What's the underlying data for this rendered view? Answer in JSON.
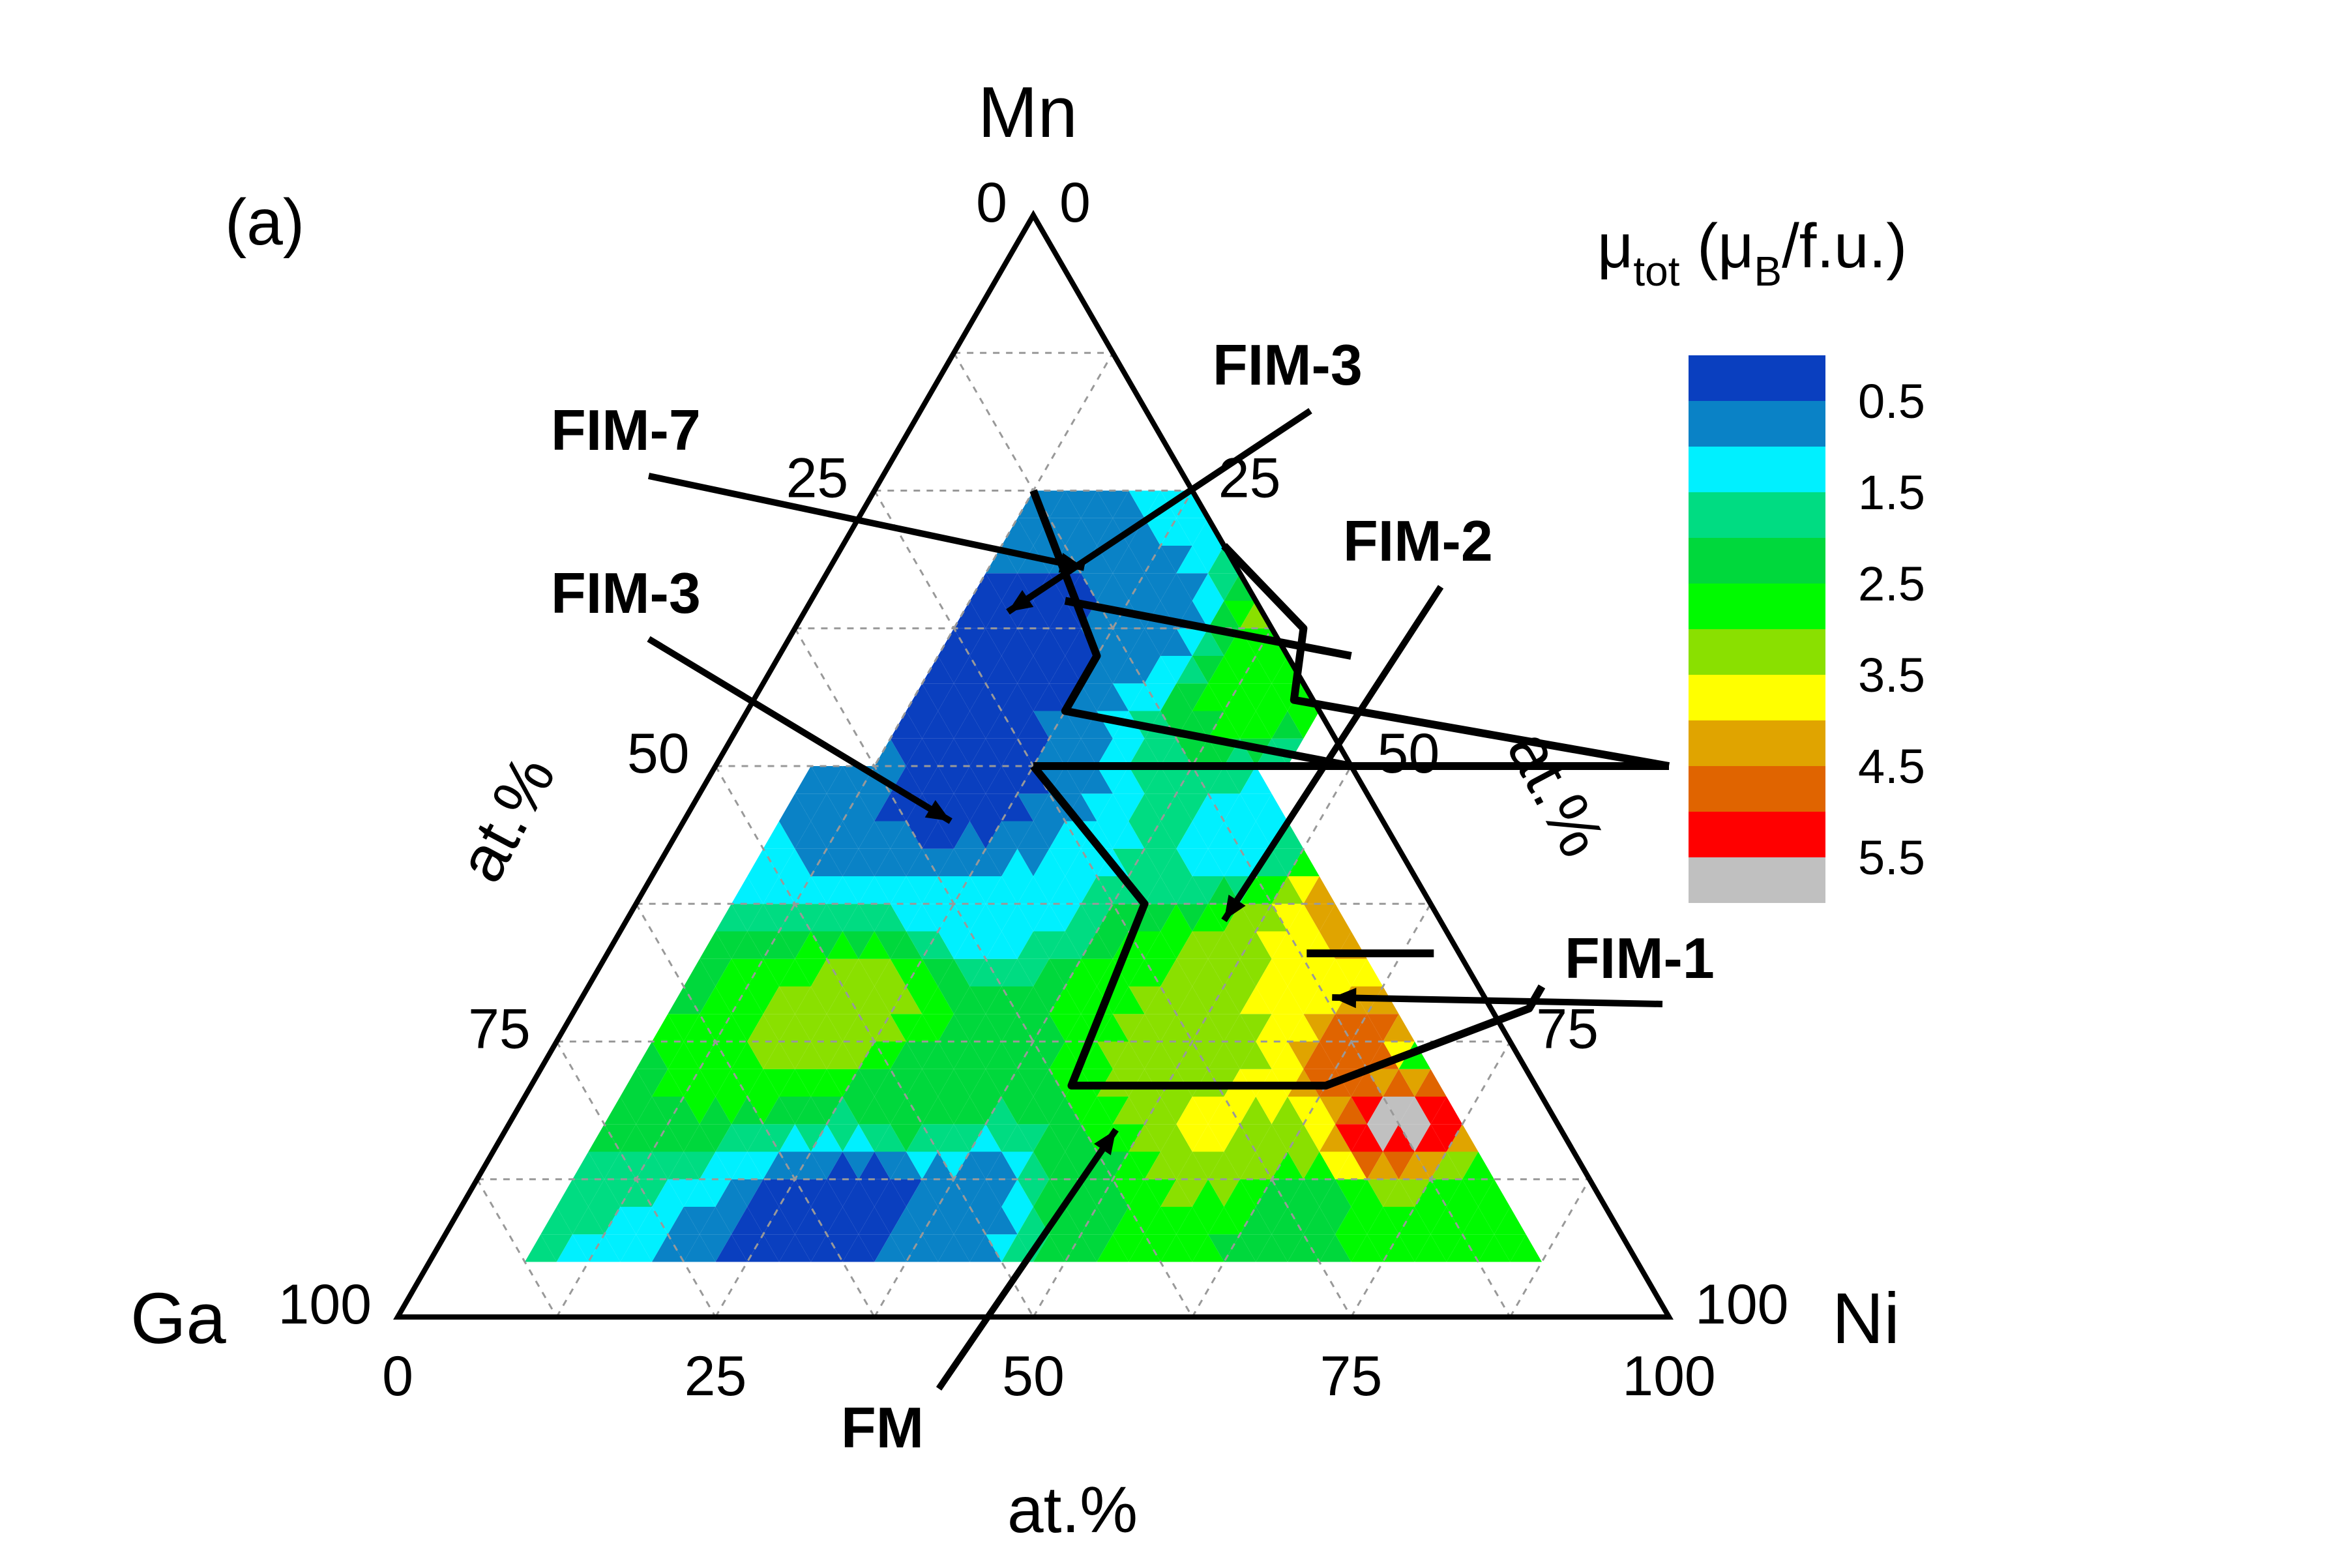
{
  "figure": {
    "panel_label": "(a)",
    "vertices": {
      "top": "Mn",
      "left": "Ga",
      "right": "Ni"
    },
    "axis_labels": {
      "left": "at.%",
      "right": "at.%",
      "bottom": "at.%"
    }
  },
  "chart_data": {
    "type": "heatmap",
    "subtype": "ternary contour",
    "components": [
      "Ni",
      "Mn",
      "Ga"
    ],
    "ticks": {
      "bottom": [
        "0",
        "25",
        "50",
        "75",
        "100"
      ],
      "left": [
        "0",
        "25",
        "50",
        "75",
        "100"
      ],
      "right": [
        "100",
        "75",
        "50",
        "25",
        "0"
      ]
    },
    "colorbar": {
      "title_main": "μ",
      "title_sub": "tot",
      "title_rest_open": " (μ",
      "title_sub2": "B",
      "title_rest_close": "/f.u.)",
      "labels": [
        "0.5",
        "1.5",
        "2.5",
        "3.5",
        "4.5",
        "5.5"
      ],
      "levels": [
        0,
        0.5,
        1,
        1.5,
        2,
        2.5,
        3,
        3.5,
        4,
        4.5,
        5,
        5.5
      ],
      "colors": [
        "#0a3fbf",
        "#0a82c6",
        "#00f0ff",
        "#00dc82",
        "#00d83c",
        "#00fa00",
        "#8ae000",
        "#ffff00",
        "#e0a400",
        "#e06400",
        "#ff0000",
        "#c0c0c0"
      ]
    },
    "grid": true,
    "regions": [
      {
        "label": "FIM-7",
        "ni": 20,
        "mn": 68
      },
      {
        "label": "FIM-3",
        "ni": 21,
        "mn": 45
      },
      {
        "label": "FIM-3",
        "ni": 16,
        "mn": 64
      },
      {
        "label": "FIM-2",
        "ni": 47,
        "mn": 36
      },
      {
        "label": "FIM-1",
        "ni": 59,
        "mn": 29
      },
      {
        "label": "FM",
        "ni": 48,
        "mn": 17
      }
    ],
    "boundaries": [
      {
        "name": "x-50",
        "points": [
          [
            25,
            50
          ],
          [
            75,
            50
          ]
        ]
      },
      {
        "name": "fm-boundary",
        "points": [
          [
            25,
            50
          ],
          [
            40,
            37.5
          ],
          [
            42.5,
            21
          ],
          [
            62.5,
            21
          ],
          [
            75,
            28
          ],
          [
            75,
            30
          ]
        ]
      },
      {
        "name": "fim7",
        "points": [
          [
            12.5,
            75
          ],
          [
            25,
            60
          ],
          [
            25,
            55
          ],
          [
            50,
            50
          ]
        ]
      },
      {
        "name": "fim7-upper",
        "points": [
          [
            30,
            70
          ],
          [
            40,
            62.5
          ],
          [
            42.5,
            56
          ],
          [
            75,
            50
          ]
        ]
      },
      {
        "name": "fim3-upper",
        "points": [
          [
            20,
            65
          ],
          [
            45,
            60
          ]
        ]
      },
      {
        "name": "fim2-step",
        "points": [
          [
            55,
            33
          ],
          [
            65,
            33
          ]
        ]
      }
    ]
  }
}
